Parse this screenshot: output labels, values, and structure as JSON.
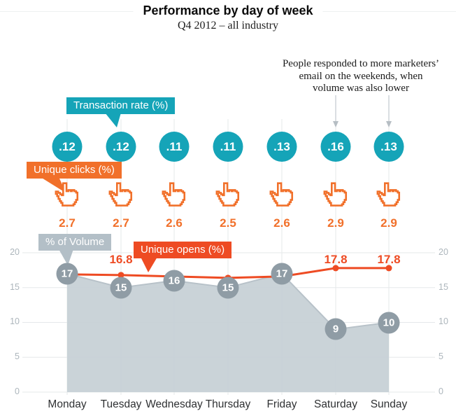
{
  "header": {
    "title": "Performance by day of week",
    "subtitle": "Q4 2012 – all industry"
  },
  "annotation": {
    "lines": [
      "People responded to more marketers’",
      "email on the weekends, when",
      "volume was also lower"
    ]
  },
  "legend": {
    "transaction_label": "Transaction rate (%)",
    "clicks_label": "Unique clicks (%)",
    "volume_label": "% of Volume",
    "opens_label": "Unique opens (%)"
  },
  "chart_data": {
    "type": "combo",
    "title": "Performance by day of week",
    "subtitle": "Q4 2012 – all industry",
    "categories": [
      "Monday",
      "Tuesday",
      "Wednesday",
      "Thursday",
      "Friday",
      "Saturday",
      "Sunday"
    ],
    "yticks": [
      0,
      5,
      10,
      15,
      20
    ],
    "ylim": [
      0,
      20
    ],
    "grid": true,
    "axes_on_both_sides": true,
    "series": [
      {
        "name": "Transaction rate (%)",
        "type": "labeled-points",
        "display": "teal-bubbles",
        "values": [
          0.12,
          0.12,
          0.11,
          0.11,
          0.13,
          0.16,
          0.13
        ],
        "labels": [
          ".12",
          ".12",
          ".11",
          ".11",
          ".13",
          ".16",
          ".13"
        ],
        "color": "#15a4b8"
      },
      {
        "name": "Unique clicks (%)",
        "type": "labeled-points",
        "display": "hand-cursor-icons",
        "values": [
          2.7,
          2.7,
          2.6,
          2.5,
          2.6,
          2.9,
          2.9
        ],
        "labels": [
          "2.7",
          "2.7",
          "2.6",
          "2.5",
          "2.6",
          "2.9",
          "2.9"
        ],
        "color": "#f1702a"
      },
      {
        "name": "Unique opens (%)",
        "type": "line",
        "values": [
          16.9,
          16.8,
          16.6,
          16.4,
          16.6,
          17.8,
          17.8
        ],
        "point_labels": {
          "1": "16.8",
          "5": "17.8",
          "6": "17.8"
        },
        "color": "#ee4b23"
      },
      {
        "name": "% of Volume",
        "type": "area",
        "values": [
          17,
          15,
          16,
          15,
          17,
          9,
          10
        ],
        "labels": [
          "17",
          "15",
          "16",
          "15",
          "17",
          "9",
          "10"
        ],
        "color": "#c6cfd5"
      }
    ]
  },
  "colors": {
    "teal": "#15a4b8",
    "clicks_orange": "#f1702a",
    "opens_red": "#ee4b23",
    "area_gray": "#c6cfd5",
    "area_edge": "#b8c2c9",
    "bubble_gray": "#8f9ca5",
    "volume_label_bg": "#b3bfc7",
    "grid": "#e5e8ea",
    "axis_text": "#adb6bc",
    "day_text": "#2f3133",
    "arrow": "#b6bec4"
  }
}
